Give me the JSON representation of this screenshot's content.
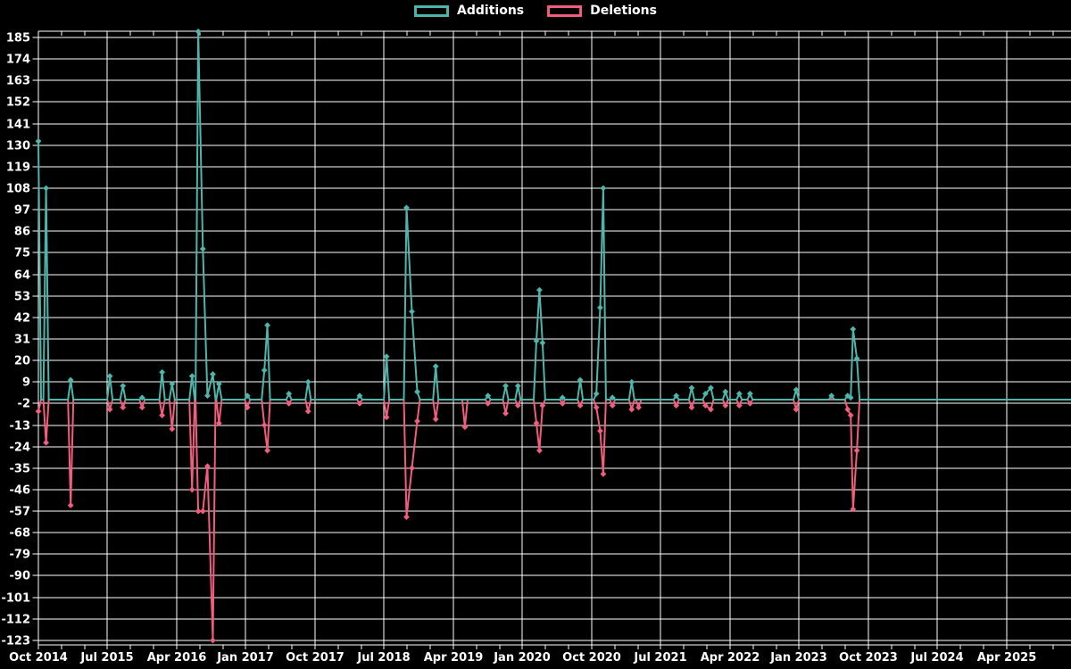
{
  "legend": {
    "items": [
      {
        "label": "Additions",
        "color": "#4db6ac"
      },
      {
        "label": "Deletions",
        "color": "#f25d7d"
      }
    ]
  },
  "chart_data": {
    "type": "line",
    "title": "",
    "xlabel": "",
    "ylabel": "",
    "background_color": "#000000",
    "grid": true,
    "gridline_color": "#ffffff",
    "text_color": "#ffffff",
    "legend_position": "top-center",
    "marker_shape": "diamond",
    "y_axis": {
      "min": -123,
      "max": 185,
      "step": 11,
      "ticks": [
        185,
        174,
        163,
        152,
        141,
        130,
        119,
        108,
        97,
        86,
        75,
        64,
        53,
        42,
        31,
        20,
        9,
        -2,
        -13,
        -24,
        -35,
        -46,
        -57,
        -68,
        -79,
        -90,
        -101,
        -112,
        -123
      ]
    },
    "x_axis": {
      "tick_labels": [
        "Oct 2014",
        "Jul 2015",
        "Apr 2016",
        "Jan 2017",
        "Oct 2017",
        "Jul 2018",
        "Apr 2019",
        "Jan 2020",
        "Oct 2020",
        "Jul 2021",
        "Apr 2022",
        "Jan 2023",
        "Oct 2023",
        "Jul 2024",
        "Apr 2025"
      ],
      "months_per_gridline": 9,
      "minor_tick_every_months": 3,
      "domain_months": [
        0,
        134.6
      ]
    },
    "series": [
      {
        "name": "Additions",
        "color": "#4db6ac",
        "value_key": "a"
      },
      {
        "name": "Deletions",
        "color": "#f25d7d",
        "value_key": "d"
      }
    ],
    "events": [
      {
        "t": "2014-10",
        "m": 0,
        "a": 132,
        "d": -6
      },
      {
        "t": "2014-11",
        "m": 1,
        "a": 108,
        "d": -22
      },
      {
        "t": "2015-02",
        "m": 4.2,
        "a": 10,
        "d": -54
      },
      {
        "t": "2015-07",
        "m": 9.3,
        "a": 12,
        "d": -5
      },
      {
        "t": "2015-09",
        "m": 11,
        "a": 7,
        "d": -4
      },
      {
        "t": "2015-12",
        "m": 13.5,
        "a": 1,
        "d": -4
      },
      {
        "t": "2016-02",
        "m": 16.1,
        "a": 14,
        "d": -8
      },
      {
        "t": "2016-03",
        "m": 17.4,
        "a": 8,
        "d": -15
      },
      {
        "t": "2016-06",
        "m": 20,
        "a": 12,
        "d": -46
      },
      {
        "t": "2016-07",
        "m": 20.8,
        "a": 188,
        "d": -57
      },
      {
        "t": "2016-07",
        "m": 21.4,
        "a": 77,
        "d": -57
      },
      {
        "t": "2016-08",
        "m": 22,
        "a": 2,
        "d": -34
      },
      {
        "t": "2016-09",
        "m": 22.7,
        "a": 13,
        "d": -123
      },
      {
        "t": "2016-10",
        "m": 23.5,
        "a": 8,
        "d": -12
      },
      {
        "t": "2017-01",
        "m": 27.2,
        "a": 2,
        "d": -4
      },
      {
        "t": "2017-03",
        "m": 29.4,
        "a": 15,
        "d": -13
      },
      {
        "t": "2017-04",
        "m": 29.8,
        "a": 38,
        "d": -26
      },
      {
        "t": "2017-06",
        "m": 32.6,
        "a": 3,
        "d": -2
      },
      {
        "t": "2017-09",
        "m": 35.1,
        "a": 9,
        "d": -6
      },
      {
        "t": "2018-03",
        "m": 41.8,
        "a": 2,
        "d": -2
      },
      {
        "t": "2018-07",
        "m": 45.3,
        "a": 22,
        "d": -9
      },
      {
        "t": "2018-09",
        "m": 47.9,
        "a": 98,
        "d": -60
      },
      {
        "t": "2018-10",
        "m": 48.6,
        "a": 45,
        "d": -35
      },
      {
        "t": "2018-11",
        "m": 49.3,
        "a": 4,
        "d": -11
      },
      {
        "t": "2019-01",
        "m": 51.7,
        "a": 17,
        "d": -10
      },
      {
        "t": "2019-05",
        "m": 55.5,
        "a": 0,
        "d": -14
      },
      {
        "t": "2019-08",
        "m": 58.5,
        "a": 2,
        "d": -2
      },
      {
        "t": "2019-11",
        "m": 60.8,
        "a": 7,
        "d": -7
      },
      {
        "t": "2019-12",
        "m": 62.4,
        "a": 7,
        "d": -3
      },
      {
        "t": "2020-02",
        "m": 64.8,
        "a": 30,
        "d": -12
      },
      {
        "t": "2020-03",
        "m": 65.2,
        "a": 56,
        "d": -26
      },
      {
        "t": "2020-03",
        "m": 65.6,
        "a": 29,
        "d": -3
      },
      {
        "t": "2020-06",
        "m": 68.2,
        "a": 1,
        "d": -2
      },
      {
        "t": "2020-08",
        "m": 70.5,
        "a": 10,
        "d": -3
      },
      {
        "t": "2020-10",
        "m": 72.6,
        "a": 3,
        "d": -4
      },
      {
        "t": "2020-11",
        "m": 73.1,
        "a": 47,
        "d": -16
      },
      {
        "t": "2020-11",
        "m": 73.5,
        "a": 108,
        "d": -38
      },
      {
        "t": "2020-12",
        "m": 74.7,
        "a": 1,
        "d": -3
      },
      {
        "t": "2021-03",
        "m": 77.2,
        "a": 9,
        "d": -5
      },
      {
        "t": "2021-04",
        "m": 78.1,
        "a": 0,
        "d": -4
      },
      {
        "t": "2021-09",
        "m": 83,
        "a": 2,
        "d": -3
      },
      {
        "t": "2021-11",
        "m": 85,
        "a": 6,
        "d": -4
      },
      {
        "t": "2022-01",
        "m": 86.8,
        "a": 3,
        "d": -3
      },
      {
        "t": "2022-01",
        "m": 87.5,
        "a": 6,
        "d": -5
      },
      {
        "t": "2022-03",
        "m": 89.4,
        "a": 4,
        "d": -3
      },
      {
        "t": "2022-05",
        "m": 91.2,
        "a": 3,
        "d": -3
      },
      {
        "t": "2022-06",
        "m": 92.6,
        "a": 3,
        "d": -2
      },
      {
        "t": "2022-12",
        "m": 98.6,
        "a": 5,
        "d": -5
      },
      {
        "t": "2023-05",
        "m": 103.2,
        "a": 2,
        "d": 0
      },
      {
        "t": "2023-07",
        "m": 105.3,
        "a": 2,
        "d": -5
      },
      {
        "t": "2023-08",
        "m": 105.7,
        "a": 1,
        "d": -8
      },
      {
        "t": "2023-08",
        "m": 106,
        "a": 36,
        "d": -56
      },
      {
        "t": "2023-09",
        "m": 106.5,
        "a": 21,
        "d": -26
      }
    ]
  }
}
